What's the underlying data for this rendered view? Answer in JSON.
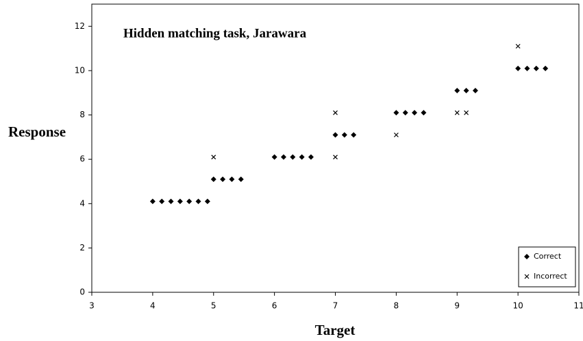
{
  "chart_data": {
    "type": "scatter",
    "title": "Hidden matching task, Jarawara",
    "xlabel": "Target",
    "ylabel": "Response",
    "xlim": [
      3,
      11
    ],
    "xticks": [
      3,
      4,
      5,
      6,
      7,
      8,
      9,
      10,
      11
    ],
    "ylim": [
      0,
      13
    ],
    "yticks": [
      0,
      2,
      4,
      6,
      8,
      10,
      12
    ],
    "grid": false,
    "legend": "lower right",
    "series": [
      {
        "name": "Correct",
        "color": "#000000",
        "marker": "diamond",
        "x": [
          4.0,
          4.15,
          4.3,
          4.45,
          4.6,
          4.75,
          4.9,
          5.0,
          5.15,
          5.3,
          5.45,
          6.0,
          6.15,
          6.3,
          6.45,
          6.6,
          7.0,
          7.15,
          7.3,
          8.0,
          8.15,
          8.3,
          8.45,
          9.0,
          9.15,
          9.3,
          10.0,
          10.15,
          10.3,
          10.45
        ],
        "y": [
          4.1,
          4.1,
          4.1,
          4.1,
          4.1,
          4.1,
          4.1,
          5.1,
          5.1,
          5.1,
          5.1,
          6.1,
          6.1,
          6.1,
          6.1,
          6.1,
          7.1,
          7.1,
          7.1,
          8.1,
          8.1,
          8.1,
          8.1,
          9.1,
          9.1,
          9.1,
          10.1,
          10.1,
          10.1,
          10.1
        ]
      },
      {
        "name": "Incorrect",
        "color": "#000000",
        "marker": "x",
        "x": [
          5.0,
          7.0,
          7.0,
          8.0,
          9.0,
          9.15,
          10.0
        ],
        "y": [
          6.1,
          8.1,
          6.1,
          7.1,
          8.1,
          8.1,
          11.1
        ]
      }
    ]
  }
}
